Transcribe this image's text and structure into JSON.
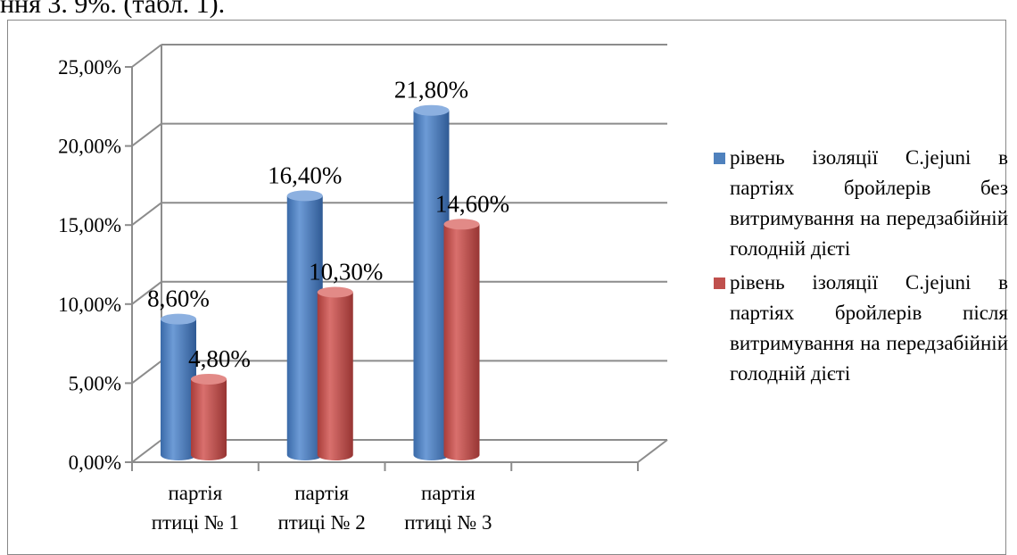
{
  "caption_fragment": "ння 3. 9%. (табл. 1).",
  "chart_data": {
    "type": "bar",
    "categories": [
      [
        "партія",
        "птиці  № 1"
      ],
      [
        "партія",
        "птиці  № 2"
      ],
      [
        "партія",
        "птиці  № 3"
      ]
    ],
    "series": [
      {
        "name": "рівень ізоляції C.jejuni в партіях бройлерів без витримування на передзабійній голодній дієті",
        "values": [
          8.6,
          16.4,
          21.8
        ],
        "labels": [
          "8,60%",
          "16,40%",
          "21,80%"
        ],
        "color": "#4F81BD"
      },
      {
        "name": "рівень ізоляції C.jejuni в партіях бройлерів після витримування на передзабійній голодній дієті",
        "values": [
          4.8,
          10.3,
          14.6
        ],
        "labels": [
          "4,80%",
          "10,30%",
          "14,60%"
        ],
        "color": "#C0504D"
      }
    ],
    "y_ticks": [
      "0,00%",
      "5,00%",
      "10,00%",
      "15,00%",
      "20,00%",
      "25,00%"
    ],
    "ylim": [
      0,
      25
    ],
    "grid": true,
    "legend_position": "right",
    "style": "3d-cylinder"
  }
}
